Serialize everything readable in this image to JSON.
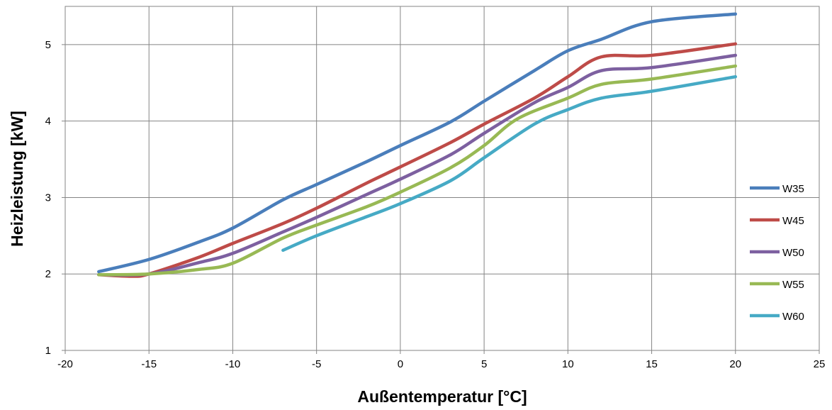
{
  "chart_data": {
    "type": "line",
    "title": "",
    "xlabel": "Außentemperatur [°C]",
    "ylabel": "Heizleistung [kW]",
    "xlim": [
      -20,
      25
    ],
    "ylim": [
      1,
      5.5
    ],
    "xticks": [
      -20,
      -15,
      -10,
      -5,
      0,
      5,
      10,
      15,
      20,
      25
    ],
    "yticks": [
      1,
      2,
      3,
      4,
      5
    ],
    "xtick_labels": [
      "-20",
      "-15",
      "-10",
      "-5",
      "0",
      "5",
      "10",
      "15",
      "20",
      "25"
    ],
    "ytick_labels": [
      "1",
      "2",
      "3",
      "4",
      "5"
    ],
    "grid": true,
    "legend_position": "right",
    "series": [
      {
        "name": "W35",
        "color": "#4a7ebb",
        "x": [
          -18,
          -15,
          -12,
          -10,
          -7,
          -5,
          -2,
          0,
          3,
          5,
          8,
          10,
          12,
          15,
          20
        ],
        "y": [
          2.03,
          2.19,
          2.42,
          2.6,
          2.97,
          3.17,
          3.47,
          3.68,
          3.99,
          4.26,
          4.66,
          4.92,
          5.07,
          5.3,
          5.4
        ]
      },
      {
        "name": "W45",
        "color": "#be4b48",
        "x": [
          -18,
          -16,
          -15,
          -12,
          -10,
          -7,
          -5,
          -2,
          0,
          3,
          5,
          8,
          10,
          12,
          15,
          20
        ],
        "y": [
          1.99,
          1.97,
          2.0,
          2.22,
          2.4,
          2.66,
          2.86,
          3.19,
          3.4,
          3.72,
          3.96,
          4.3,
          4.58,
          4.84,
          4.86,
          5.01
        ]
      },
      {
        "name": "W50",
        "color": "#7d60a0",
        "x": [
          -18,
          -15,
          -12,
          -10,
          -7,
          -5,
          -2,
          0,
          3,
          5,
          8,
          10,
          12,
          15,
          20
        ],
        "y": [
          1.99,
          2.0,
          2.15,
          2.27,
          2.55,
          2.74,
          3.04,
          3.24,
          3.56,
          3.84,
          4.24,
          4.44,
          4.66,
          4.7,
          4.86
        ]
      },
      {
        "name": "W55",
        "color": "#98b954",
        "x": [
          -18,
          -15,
          -12,
          -10,
          -7,
          -5,
          -2,
          0,
          3,
          5,
          7,
          10,
          12,
          15,
          20
        ],
        "y": [
          1.99,
          2.0,
          2.06,
          2.14,
          2.47,
          2.64,
          2.88,
          3.07,
          3.39,
          3.68,
          4.03,
          4.3,
          4.48,
          4.55,
          4.72
        ]
      },
      {
        "name": "W60",
        "color": "#46aac5",
        "x": [
          -7,
          -5,
          -2,
          0,
          3,
          5,
          8,
          10,
          12,
          15,
          20
        ],
        "y": [
          2.31,
          2.5,
          2.75,
          2.92,
          3.22,
          3.52,
          3.96,
          4.15,
          4.3,
          4.39,
          4.58
        ]
      }
    ]
  }
}
